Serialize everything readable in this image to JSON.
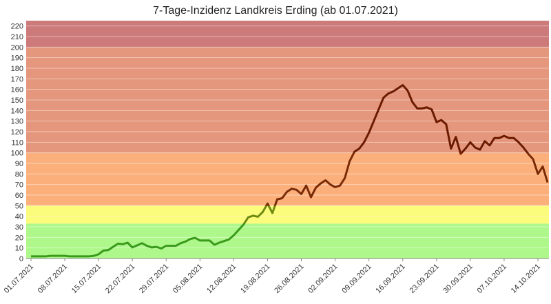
{
  "chart_data": {
    "type": "line",
    "title": "7-Tage-Inzidenz Landkreis Erding (ab 01.07.2021)",
    "categories": [
      "01.07.2021",
      null,
      null,
      null,
      null,
      null,
      null,
      "08.07.2021",
      null,
      null,
      null,
      null,
      null,
      null,
      "15.07.2021",
      null,
      null,
      null,
      null,
      null,
      null,
      "22.07.2021",
      null,
      null,
      null,
      null,
      null,
      null,
      "29.07.2021",
      null,
      null,
      null,
      null,
      null,
      null,
      "05.08.2021",
      null,
      null,
      null,
      null,
      null,
      null,
      "12.08.2021",
      null,
      null,
      null,
      null,
      null,
      null,
      "19.08.2021",
      null,
      null,
      null,
      null,
      null,
      null,
      "26.08.2021",
      null,
      null,
      null,
      null,
      null,
      null,
      "02.09.2021",
      null,
      null,
      null,
      null,
      null,
      null,
      "09.09.2021",
      null,
      null,
      null,
      null,
      null,
      null,
      "16.09.2021",
      null,
      null,
      null,
      null,
      null,
      null,
      "23.09.2021",
      null,
      null,
      null,
      null,
      null,
      null,
      "30.09.2021",
      null,
      null,
      null,
      null,
      null,
      null,
      "07.10.2021",
      null,
      null,
      null,
      null,
      null,
      null,
      "14.10.2021",
      null,
      null
    ],
    "values": [
      2,
      2,
      2,
      2,
      2.5,
      2.5,
      2.5,
      2.5,
      2,
      2,
      2,
      2,
      2,
      2.5,
      4,
      7.5,
      8,
      11,
      14,
      13.5,
      15,
      10.5,
      12.5,
      14.5,
      12,
      10.5,
      11,
      9.5,
      12,
      12,
      12,
      14.5,
      16,
      18.5,
      19.5,
      17,
      17,
      17,
      13,
      15,
      16.5,
      18,
      22,
      27,
      32,
      39,
      40.5,
      39.5,
      44,
      52,
      43,
      56,
      57,
      63,
      66,
      65,
      61,
      69,
      58,
      67,
      71,
      74,
      70,
      67.5,
      69,
      76,
      92,
      101,
      104,
      110,
      119,
      130,
      141,
      152,
      156,
      158,
      161,
      164,
      159,
      148,
      142,
      142,
      143,
      141,
      129,
      131,
      127,
      104,
      115,
      99,
      104,
      110,
      105,
      103,
      111,
      107,
      114,
      114,
      116,
      114,
      114,
      110,
      105,
      99,
      94,
      80,
      87,
      72
    ],
    "ylim": [
      0,
      225
    ],
    "yticks": [
      0,
      10,
      20,
      30,
      40,
      50,
      60,
      70,
      80,
      90,
      100,
      110,
      120,
      130,
      140,
      150,
      160,
      170,
      180,
      190,
      200,
      210,
      220
    ],
    "grid": true,
    "bands": [
      {
        "from": 0,
        "to": 33,
        "color": "#aef78a",
        "line_color": "#3a9a1c"
      },
      {
        "from": 33,
        "to": 50,
        "color": "#fbfb7c",
        "line_color": "#6f8a12"
      },
      {
        "from": 50,
        "to": 100,
        "color": "#fbb07c",
        "line_color": "#7a2a05"
      },
      {
        "from": 100,
        "to": 200,
        "color": "#e4977c",
        "line_color": "#6b1a00"
      },
      {
        "from": 200,
        "to": 225,
        "color": "#cd7a7a",
        "line_color": "#6b1a00"
      }
    ]
  }
}
